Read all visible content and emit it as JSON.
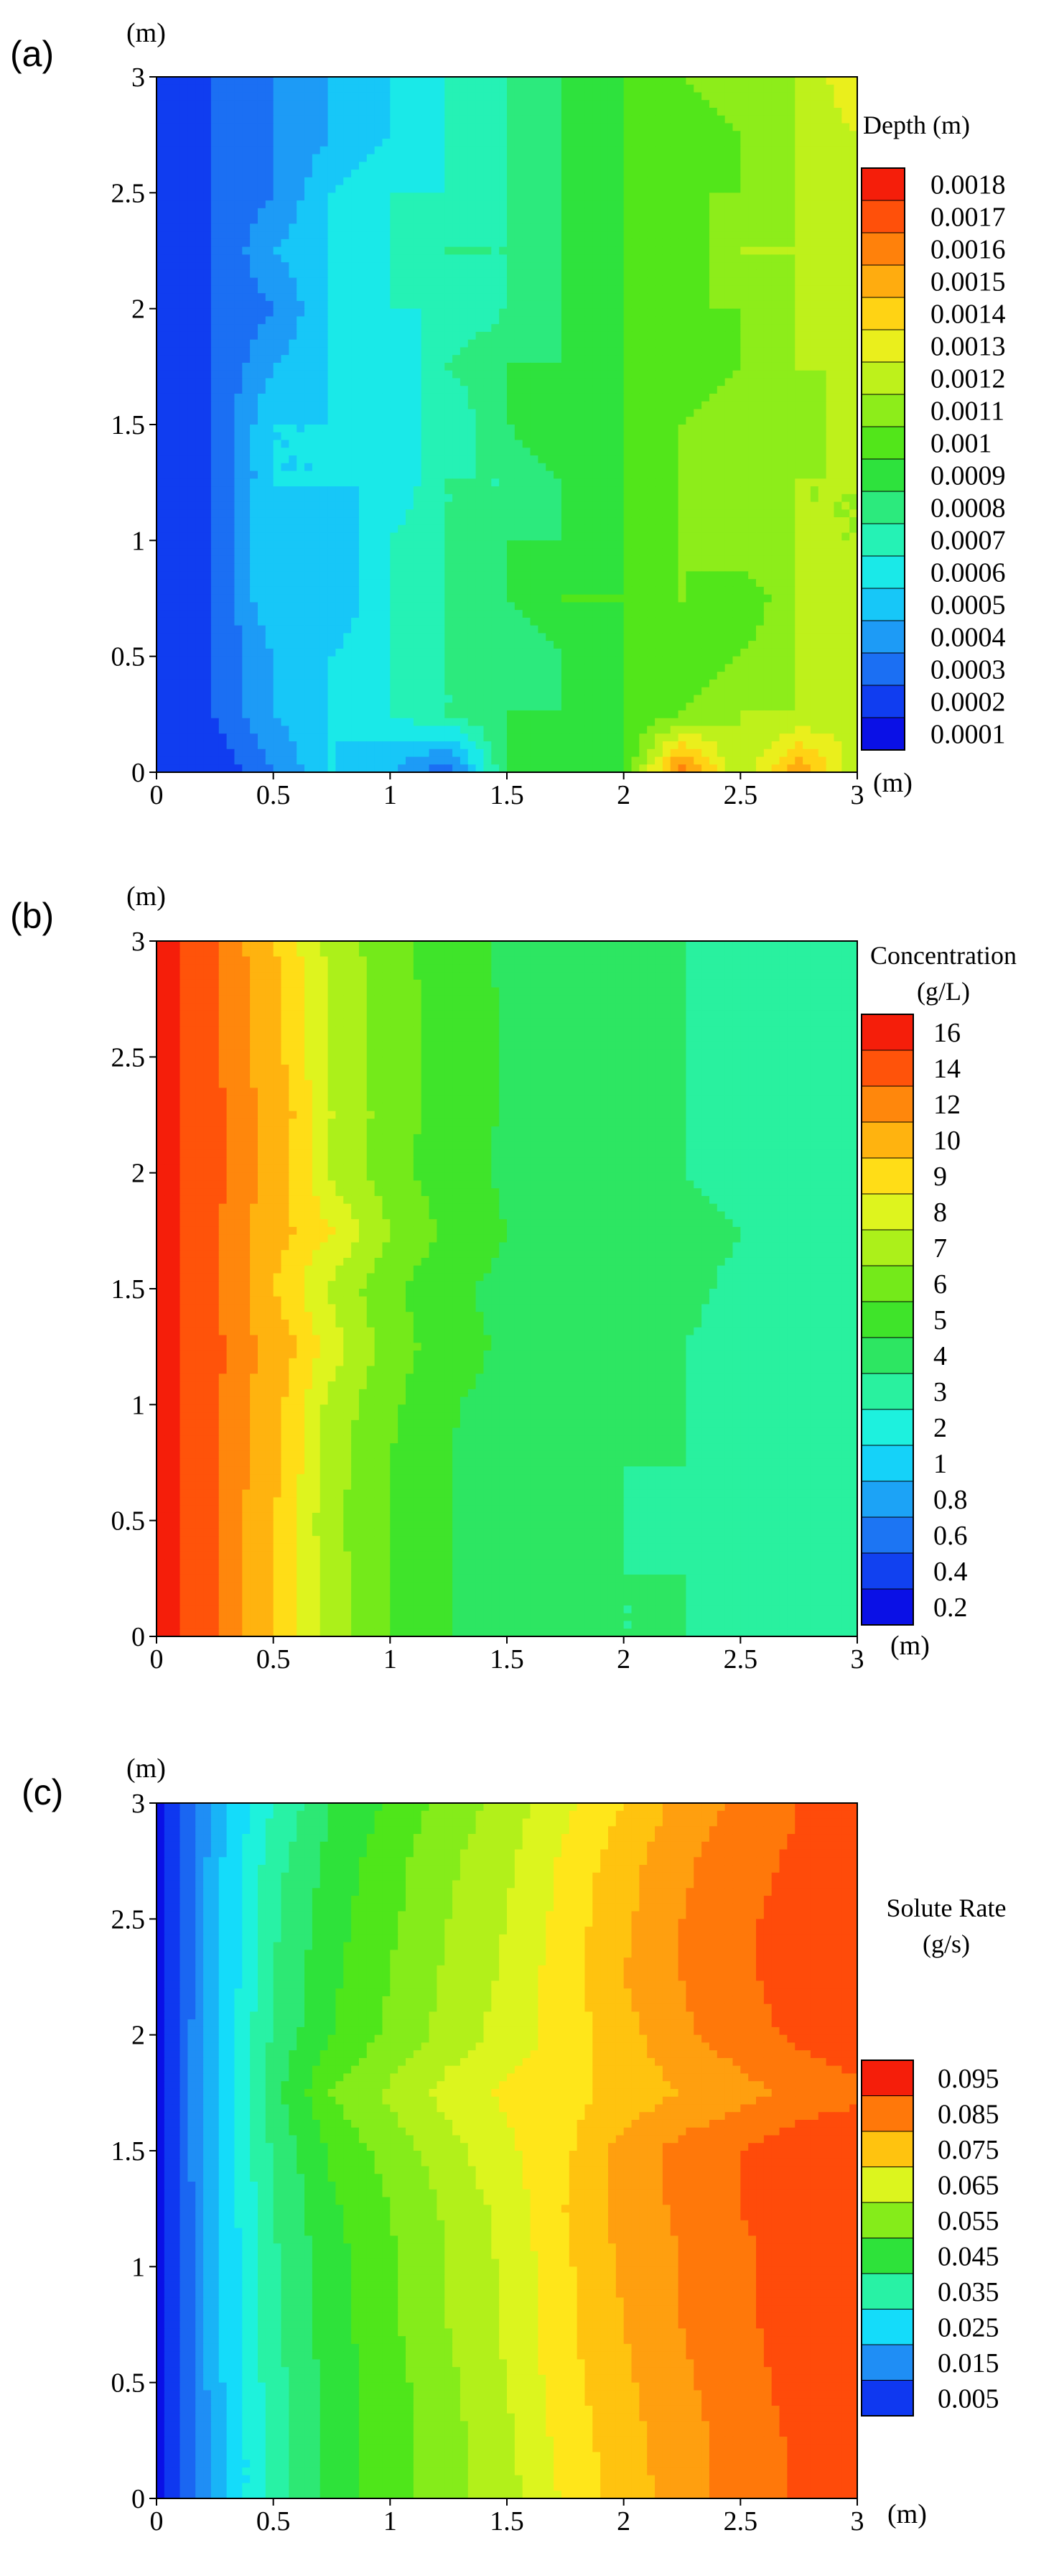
{
  "colors": [
    "#0a10e6",
    "#0f38f0",
    "#1a66f2",
    "#1f8ef5",
    "#19b4f7",
    "#14dcfa",
    "#1ef2dc",
    "#28f2a5",
    "#2de874",
    "#2ee23a",
    "#4fe61a",
    "#85ec1a",
    "#b2f01a",
    "#dcf51e",
    "#ffe61a",
    "#ffc30f",
    "#ff9f0f",
    "#ff780a",
    "#ff4b0a",
    "#f51e0a"
  ],
  "chart_data": [
    {
      "type": "heatmap",
      "panel_label": "(a)",
      "x_unit": "(m)",
      "y_unit": "(m)",
      "xlim": [
        0,
        3
      ],
      "ylim": [
        0,
        3
      ],
      "x_ticks": [
        "0",
        "0.5",
        "1",
        "1.5",
        "2",
        "2.5",
        "3"
      ],
      "y_ticks": [
        "0",
        "0.5",
        "1",
        "1.5",
        "2",
        "2.5",
        "3"
      ],
      "legend_title": [
        "Depth (m)"
      ],
      "legend_labels": [
        "0.0018",
        "0.0017",
        "0.0016",
        "0.0015",
        "0.0014",
        "0.0013",
        "0.0012",
        "0.0011",
        "0.001",
        "0.0009",
        "0.0008",
        "0.0007",
        "0.0006",
        "0.0005",
        "0.0004",
        "0.0003",
        "0.0002",
        "0.0001"
      ],
      "levels": [
        0.0001,
        0.0002,
        0.0003,
        0.0004,
        0.0005,
        0.0006,
        0.0007,
        0.0008,
        0.0009,
        0.001,
        0.0011,
        0.0012,
        0.0013,
        0.0014,
        0.0015,
        0.0016,
        0.0017,
        0.0018
      ],
      "x": [
        0,
        0.25,
        0.5,
        0.75,
        1,
        1.25,
        1.5,
        1.75,
        2,
        2.25,
        2.5,
        2.75,
        3
      ],
      "y": [
        0,
        0.25,
        0.5,
        0.75,
        1,
        1.25,
        1.5,
        1.75,
        2,
        2.25,
        2.5,
        2.75,
        3
      ],
      "z": [
        [
          0.0002,
          0.0002,
          0.0004,
          0.0006,
          0.0005,
          0.0003,
          0.0009,
          0.001,
          0.001,
          0.0017,
          0.0012,
          0.0016,
          0.0012
        ],
        [
          0.0002,
          0.0003,
          0.0005,
          0.0006,
          0.0007,
          0.0008,
          0.0009,
          0.0009,
          0.001,
          0.0011,
          0.0012,
          0.0012,
          0.0013
        ],
        [
          0.0002,
          0.0003,
          0.0005,
          0.0006,
          0.0007,
          0.0008,
          0.0008,
          0.0009,
          0.001,
          0.001,
          0.0011,
          0.0012,
          0.0012
        ],
        [
          0.0002,
          0.0003,
          0.0006,
          0.0005,
          0.0007,
          0.0008,
          0.0009,
          0.001,
          0.001,
          0.0011,
          0.001,
          0.0012,
          0.0013
        ],
        [
          0.0002,
          0.0003,
          0.0006,
          0.0005,
          0.0007,
          0.0008,
          0.0009,
          0.0009,
          0.001,
          0.0011,
          0.0012,
          0.0012,
          0.0012
        ],
        [
          0.0002,
          0.0003,
          0.0006,
          0.0006,
          0.0006,
          0.0008,
          0.0008,
          0.0009,
          0.001,
          0.0011,
          0.0011,
          0.0012,
          0.0012
        ],
        [
          0.0002,
          0.0003,
          0.0006,
          0.0006,
          0.0007,
          0.0007,
          0.0009,
          0.001,
          0.001,
          0.0011,
          0.0012,
          0.0011,
          0.0013
        ],
        [
          0.0002,
          0.0003,
          0.0005,
          0.0006,
          0.0006,
          0.0008,
          0.0009,
          0.0009,
          0.001,
          0.001,
          0.0011,
          0.0012,
          0.0012
        ],
        [
          0.0002,
          0.0003,
          0.0004,
          0.0006,
          0.0007,
          0.0007,
          0.0008,
          0.0009,
          0.001,
          0.0011,
          0.0011,
          0.0012,
          0.0013
        ],
        [
          0.0002,
          0.0003,
          0.0005,
          0.0006,
          0.0007,
          0.0008,
          0.0008,
          0.0009,
          0.001,
          0.001,
          0.0012,
          0.0012,
          0.0012
        ],
        [
          0.0002,
          0.0003,
          0.0004,
          0.0006,
          0.0007,
          0.0007,
          0.0008,
          0.0009,
          0.001,
          0.0011,
          0.0011,
          0.0012,
          0.0013
        ],
        [
          0.0002,
          0.0003,
          0.0004,
          0.0005,
          0.0006,
          0.0007,
          0.0008,
          0.0009,
          0.001,
          0.001,
          0.0011,
          0.0012,
          0.0013
        ],
        [
          0.0002,
          0.0003,
          0.0004,
          0.0005,
          0.0006,
          0.0007,
          0.0008,
          0.0009,
          0.001,
          0.0011,
          0.0012,
          0.0012,
          0.0014
        ]
      ]
    },
    {
      "type": "heatmap",
      "panel_label": "(b)",
      "x_unit": "(m)",
      "y_unit": "(m)",
      "xlim": [
        0,
        3
      ],
      "ylim": [
        0,
        3
      ],
      "x_ticks": [
        "0",
        "0.5",
        "1",
        "1.5",
        "2",
        "2.5",
        "3"
      ],
      "y_ticks": [
        "0",
        "0.5",
        "1",
        "1.5",
        "2",
        "2.5",
        "3"
      ],
      "legend_title": [
        "Concentration",
        "(g/L)"
      ],
      "legend_labels": [
        "16",
        "14",
        "12",
        "10",
        "9",
        "8",
        "7",
        "6",
        "5",
        "4",
        "3",
        "2",
        "1",
        "0.8",
        "0.6",
        "0.4",
        "0.2"
      ],
      "levels": [
        0.2,
        0.4,
        0.6,
        0.8,
        1,
        2,
        3,
        4,
        5,
        6,
        7,
        8,
        9,
        10,
        12,
        14,
        16
      ],
      "x": [
        0,
        0.25,
        0.5,
        0.75,
        1,
        1.25,
        1.5,
        1.75,
        2,
        2.25,
        2.5,
        2.75,
        3
      ],
      "y": [
        0,
        0.25,
        0.5,
        0.75,
        1,
        1.25,
        1.5,
        1.75,
        2,
        2.25,
        2.5,
        2.75,
        3
      ],
      "z": [
        [
          17,
          14,
          10,
          7.5,
          6,
          5,
          4.5,
          4.5,
          4,
          4,
          4,
          3.8,
          3.5
        ],
        [
          17,
          14,
          10,
          7.5,
          6,
          5,
          4.5,
          4.5,
          4,
          4,
          3.8,
          3.5,
          3.5
        ],
        [
          17,
          14,
          10,
          7.2,
          6,
          5,
          4.5,
          4.4,
          4,
          3.8,
          3.8,
          3.5,
          3.5
        ],
        [
          17,
          14,
          10.5,
          7.5,
          6,
          5,
          4.6,
          4.4,
          4,
          4,
          3.8,
          3.6,
          3.5
        ],
        [
          17,
          14.5,
          10.5,
          7.6,
          6.2,
          5.1,
          4.6,
          4.4,
          4.1,
          4,
          3.8,
          3.6,
          3.5
        ],
        [
          17,
          14.5,
          11,
          8.5,
          6.5,
          5.5,
          4.8,
          4.5,
          4.2,
          4,
          3.9,
          3.7,
          3.5
        ],
        [
          17,
          14.5,
          10,
          7.8,
          6.2,
          5.2,
          4.7,
          4.5,
          4.2,
          4.1,
          3.9,
          3.8,
          3.6
        ],
        [
          17,
          14.5,
          10.5,
          9,
          7,
          5.8,
          5,
          4.7,
          4.4,
          4.2,
          4,
          3.8,
          3.6
        ],
        [
          17,
          14.5,
          11,
          7.8,
          6.4,
          5.4,
          4.8,
          4.5,
          4.2,
          4,
          3.8,
          3.7,
          3.5
        ],
        [
          17,
          14.5,
          11,
          8,
          6.5,
          5.5,
          4.9,
          4.5,
          4.2,
          4,
          3.8,
          3.7,
          3.5
        ],
        [
          17,
          14.5,
          10.5,
          7.8,
          6.5,
          5.5,
          4.9,
          4.5,
          4.3,
          4,
          3.8,
          3.7,
          3.5
        ],
        [
          17,
          14.5,
          10.5,
          7.8,
          6.5,
          5.5,
          4.9,
          4.6,
          4.3,
          4,
          3.8,
          3.6,
          3.5
        ],
        [
          17,
          14,
          10,
          7.6,
          6.4,
          5.4,
          4.8,
          4.5,
          4.2,
          4,
          3.9,
          3.6,
          3.4
        ]
      ]
    },
    {
      "type": "heatmap",
      "panel_label": "(c)",
      "x_unit": "(m)",
      "y_unit": "(m)",
      "xlim": [
        0,
        3
      ],
      "ylim": [
        0,
        3
      ],
      "x_ticks": [
        "0",
        "0.5",
        "1",
        "1.5",
        "2",
        "2.5",
        "3"
      ],
      "y_ticks": [
        "0",
        "0.5",
        "1",
        "1.5",
        "2",
        "2.5",
        "3"
      ],
      "legend_title": [
        "Solute Rate",
        "(g/s)"
      ],
      "legend_labels": [
        "0.095",
        "0.085",
        "0.075",
        "0.065",
        "0.055",
        "0.045",
        "0.035",
        "0.025",
        "0.015",
        "0.005"
      ],
      "levels": [
        0.005,
        0.01,
        0.015,
        0.02,
        0.025,
        0.03,
        0.035,
        0.04,
        0.045,
        0.05,
        0.055,
        0.06,
        0.065,
        0.07,
        0.075,
        0.08,
        0.085,
        0.09,
        0.095,
        0.1
      ],
      "x": [
        0,
        0.25,
        0.5,
        0.75,
        1,
        1.25,
        1.5,
        1.75,
        2,
        2.25,
        2.5,
        2.75,
        3
      ],
      "y": [
        0,
        0.25,
        0.5,
        0.75,
        1,
        1.25,
        1.5,
        1.75,
        2,
        2.25,
        2.5,
        2.75,
        3
      ],
      "z": [
        [
          0.006,
          0.027,
          0.042,
          0.052,
          0.058,
          0.063,
          0.068,
          0.076,
          0.082,
          0.088,
          0.092,
          0.096,
          0.098
        ],
        [
          0.006,
          0.027,
          0.042,
          0.052,
          0.058,
          0.063,
          0.069,
          0.077,
          0.083,
          0.088,
          0.092,
          0.096,
          0.098
        ],
        [
          0.006,
          0.028,
          0.043,
          0.052,
          0.058,
          0.064,
          0.07,
          0.078,
          0.084,
          0.089,
          0.093,
          0.097,
          0.099
        ],
        [
          0.006,
          0.028,
          0.044,
          0.053,
          0.059,
          0.065,
          0.071,
          0.079,
          0.085,
          0.09,
          0.094,
          0.097,
          0.099
        ],
        [
          0.006,
          0.028,
          0.044,
          0.053,
          0.059,
          0.065,
          0.071,
          0.079,
          0.086,
          0.09,
          0.094,
          0.097,
          0.099
        ],
        [
          0.006,
          0.029,
          0.045,
          0.054,
          0.06,
          0.066,
          0.072,
          0.08,
          0.087,
          0.091,
          0.095,
          0.097,
          0.099
        ],
        [
          0.007,
          0.029,
          0.046,
          0.056,
          0.062,
          0.068,
          0.074,
          0.079,
          0.087,
          0.092,
          0.095,
          0.098,
          0.099
        ],
        [
          0.007,
          0.029,
          0.048,
          0.06,
          0.066,
          0.072,
          0.076,
          0.078,
          0.082,
          0.085,
          0.088,
          0.092,
          0.094
        ],
        [
          0.007,
          0.029,
          0.046,
          0.055,
          0.061,
          0.067,
          0.072,
          0.077,
          0.083,
          0.089,
          0.093,
          0.096,
          0.098
        ],
        [
          0.006,
          0.028,
          0.045,
          0.054,
          0.06,
          0.066,
          0.071,
          0.078,
          0.085,
          0.09,
          0.094,
          0.097,
          0.099
        ],
        [
          0.006,
          0.028,
          0.044,
          0.053,
          0.059,
          0.065,
          0.07,
          0.077,
          0.084,
          0.09,
          0.094,
          0.097,
          0.099
        ],
        [
          0.006,
          0.028,
          0.043,
          0.052,
          0.058,
          0.064,
          0.069,
          0.076,
          0.083,
          0.089,
          0.093,
          0.096,
          0.098
        ],
        [
          0.006,
          0.027,
          0.04,
          0.05,
          0.056,
          0.062,
          0.067,
          0.074,
          0.08,
          0.087,
          0.091,
          0.095,
          0.097
        ]
      ]
    }
  ]
}
